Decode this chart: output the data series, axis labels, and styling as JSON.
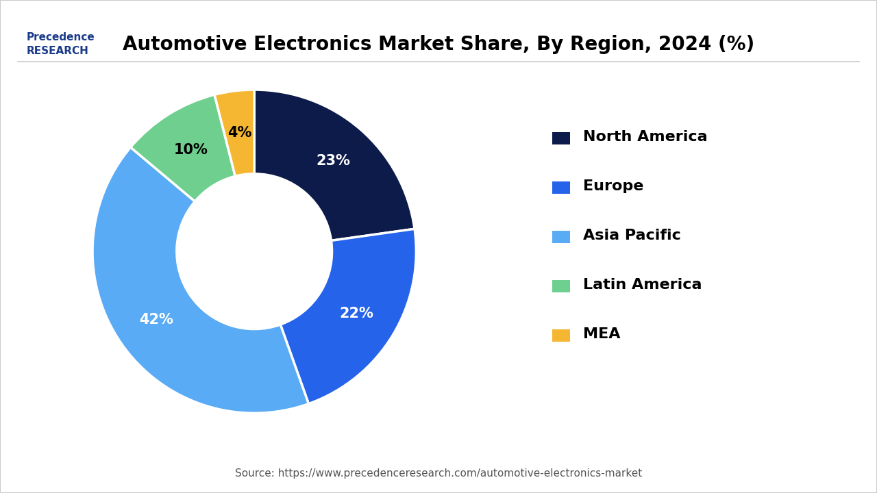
{
  "title": "Automotive Electronics Market Share, By Region, 2024 (%)",
  "labels": [
    "North America",
    "Europe",
    "Asia Pacific",
    "Latin America",
    "MEA"
  ],
  "values": [
    23,
    22,
    42,
    10,
    4
  ],
  "colors": [
    "#0d1b4b",
    "#2563eb",
    "#5aabf5",
    "#6ecf8e",
    "#f5b732"
  ],
  "pct_labels": [
    "23%",
    "22%",
    "42%",
    "10%",
    "4%"
  ],
  "pct_colors": [
    "white",
    "white",
    "white",
    "black",
    "black"
  ],
  "source_text": "Source: https://www.precedenceresearch.com/automotive-electronics-market",
  "background_color": "#ffffff",
  "border_color": "#cccccc"
}
